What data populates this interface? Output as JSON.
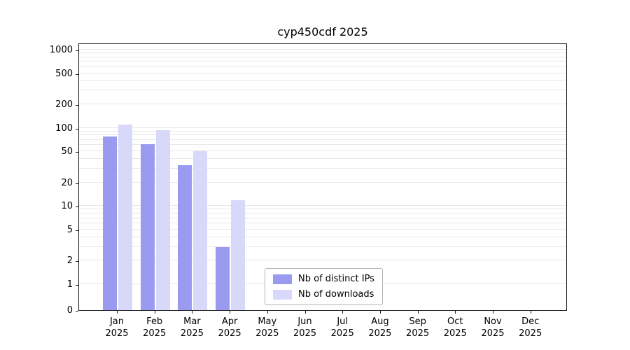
{
  "chart_data": {
    "type": "bar",
    "title": "cyp450cdf 2025",
    "year": "2025",
    "months": [
      "Jan",
      "Feb",
      "Mar",
      "Apr",
      "May",
      "Jun",
      "Jul",
      "Aug",
      "Sep",
      "Oct",
      "Nov",
      "Dec"
    ],
    "y_scale": "log",
    "y_ticks": [
      0,
      1,
      2,
      5,
      10,
      20,
      50,
      100,
      200,
      500,
      1000
    ],
    "ylim": [
      0,
      1300
    ],
    "grid": "horizontal-minor-log",
    "legend_position": "bottom-center-inside",
    "series": [
      {
        "name": "Nb of distinct IPs",
        "color": "#9a9af0",
        "values": [
          78,
          62,
          33,
          3,
          0,
          0,
          0,
          0,
          0,
          0,
          0,
          0
        ]
      },
      {
        "name": "Nb of downloads",
        "color": "#d8d8fa",
        "values": [
          110,
          93,
          50,
          12,
          0,
          0,
          0,
          0,
          0,
          0,
          0,
          0
        ]
      }
    ]
  }
}
